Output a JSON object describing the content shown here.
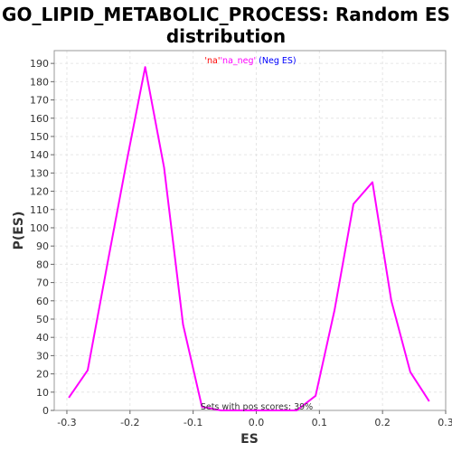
{
  "chart_data": {
    "type": "line",
    "title_line1": "GO_LIPID_METABOLIC_PROCESS: Random ES",
    "title_line2": "distribution",
    "xlabel": "ES",
    "ylabel": "P(ES)",
    "xlim": [
      -0.32,
      0.3
    ],
    "ylim": [
      0,
      197
    ],
    "xticks": [
      -0.3,
      -0.2,
      -0.1,
      0.0,
      0.1,
      0.2,
      0.3
    ],
    "xtick_labels": [
      "-0.3",
      "-0.2",
      "-0.1",
      "0.0",
      "0.1",
      "0.2",
      "0.3"
    ],
    "yticks": [
      0,
      10,
      20,
      30,
      40,
      50,
      60,
      70,
      80,
      90,
      100,
      110,
      120,
      130,
      140,
      150,
      160,
      170,
      180,
      190
    ],
    "grid": true,
    "legend": {
      "parts": [
        {
          "text": "'na'",
          "color": "#ff0000"
        },
        {
          "text": "'na_neg'",
          "color": "#ff00ff"
        },
        {
          "text": " (Neg ES)",
          "color": "#0000ff"
        }
      ]
    },
    "annotation": "Sets with pos scores: 39%",
    "series": [
      {
        "color": "#ff00ff",
        "x": [
          -0.297,
          -0.267,
          -0.236,
          -0.206,
          -0.176,
          -0.146,
          -0.116,
          -0.086,
          -0.056,
          -0.026,
          0.004,
          0.034,
          0.064,
          0.094,
          0.124,
          0.154,
          0.184,
          0.214,
          0.244,
          0.274
        ],
        "y": [
          7,
          22,
          80,
          135,
          188,
          133,
          47,
          2,
          0,
          0,
          0,
          0,
          0,
          8,
          55,
          113,
          125,
          60,
          21,
          5
        ]
      }
    ]
  }
}
